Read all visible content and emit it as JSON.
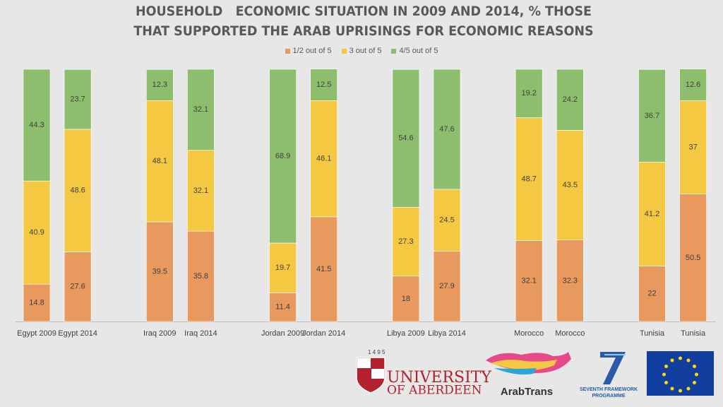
{
  "chart_data": {
    "type": "stacked_bar",
    "title": "HOUSEHOLD   ECONOMIC SITUATION IN 2009 AND 2014, % THOSE THAT SUPPORTED THE ARAB UPRISINGS FOR ECONOMIC REASONS",
    "categories": [
      "Egypt 2009",
      "Egypt 2014",
      "Iraq 2009",
      "Iraq 2014",
      "Jordan 2009",
      "Jordan 2014",
      "Libya 2009",
      "Libya 2014",
      "Morocco",
      "Morocco",
      "Tunisia",
      "Tunisia"
    ],
    "series": [
      {
        "name": "1/2 out of 5",
        "color": "#e8995e",
        "values": [
          14.8,
          27.6,
          39.5,
          35.8,
          11.4,
          41.5,
          18,
          27.9,
          32.1,
          32.3,
          22,
          50.5
        ]
      },
      {
        "name": "3 out of 5",
        "color": "#f5c842",
        "values": [
          40.9,
          48.6,
          48.1,
          32.1,
          19.7,
          46.1,
          27.3,
          24.5,
          48.7,
          43.5,
          41.2,
          37
        ]
      },
      {
        "name": "4/5 out of 5",
        "color": "#8dbe6e",
        "values": [
          44.3,
          23.7,
          12.3,
          32.1,
          68.9,
          12.5,
          54.6,
          47.6,
          19.2,
          24.2,
          36.7,
          12.6
        ]
      }
    ],
    "ylim": [
      0,
      100
    ],
    "legend": "top"
  },
  "logos": {
    "aberdeen_year": "1 4 9 5",
    "aberdeen_line1": "UNIVERSITY",
    "aberdeen_line2": "OF ABERDEEN",
    "arabtrans": "ArabTrans",
    "fp7_line1": "SEVENTH FRAMEWORK",
    "fp7_line2": "PROGRAMME"
  }
}
